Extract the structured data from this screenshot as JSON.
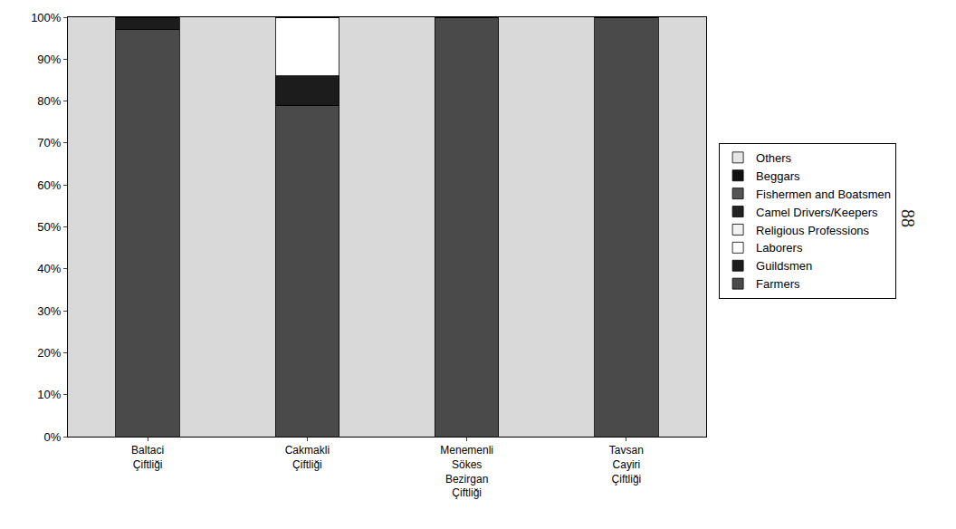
{
  "chart_data": {
    "type": "bar",
    "stacked": true,
    "grid": false,
    "legend": "right",
    "categories": [
      "Baltaci Çiftliği",
      "Cakmakli Çiftliği",
      "Menemenli Sökes Bezirgan Çiftliği",
      "Tavsan Cayiri Çiftliği"
    ],
    "series": [
      {
        "name": "Farmers",
        "color": "#4a4a4a",
        "values": [
          97,
          79,
          100,
          100
        ]
      },
      {
        "name": "Guildsmen",
        "color": "#1c1c1c",
        "values": [
          3,
          7,
          0,
          0
        ]
      },
      {
        "name": "Laborers",
        "color": "#ffffff",
        "values": [
          0,
          14,
          0,
          0
        ]
      },
      {
        "name": "Religious Professions",
        "color": "#f2f2f2",
        "values": [
          0,
          0,
          0,
          0
        ]
      },
      {
        "name": "Camel Drivers/Keepers",
        "color": "#222222",
        "values": [
          0,
          0,
          0,
          0
        ]
      },
      {
        "name": "Fishermen and Boatsmen",
        "color": "#555555",
        "values": [
          0,
          0,
          0,
          0
        ]
      },
      {
        "name": "Beggars",
        "color": "#111111",
        "values": [
          0,
          0,
          0,
          0
        ]
      },
      {
        "name": "Others",
        "color": "#e6e6e6",
        "values": [
          0,
          0,
          0,
          0
        ]
      }
    ],
    "ylim": [
      0,
      100
    ],
    "yticks": [
      {
        "value": 0,
        "label": "0%"
      },
      {
        "value": 10,
        "label": "10%"
      },
      {
        "value": 20,
        "label": "20%"
      },
      {
        "value": 30,
        "label": "30%"
      },
      {
        "value": 40,
        "label": "40%"
      },
      {
        "value": 50,
        "label": "50%"
      },
      {
        "value": 60,
        "label": "60%"
      },
      {
        "value": 70,
        "label": "70%"
      },
      {
        "value": 80,
        "label": "80%"
      },
      {
        "value": 90,
        "label": "90%"
      },
      {
        "value": 100,
        "label": "100%"
      }
    ],
    "annotations": [
      {
        "text": "88"
      }
    ]
  }
}
